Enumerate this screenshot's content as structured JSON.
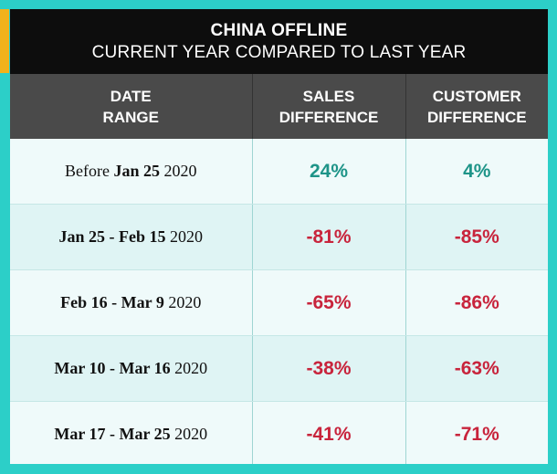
{
  "title": {
    "line1": "CHINA OFFLINE",
    "line2": "CURRENT YEAR COMPARED TO LAST YEAR"
  },
  "colors": {
    "background": "#2ccfc8",
    "accent": "#f2b21b",
    "positive": "#1e9488",
    "negative": "#c8243c"
  },
  "chart_data": {
    "type": "table",
    "columns": [
      [
        "DATE",
        "RANGE"
      ],
      [
        "SALES",
        "DIFFERENCE"
      ],
      [
        "CUSTOMER",
        "DIFFERENCE"
      ]
    ],
    "rows": [
      {
        "range_pre": "Before ",
        "range_bold": "Jan 25",
        "range_post": " 2020",
        "sales": "24%",
        "customer": "4%",
        "sales_value": 24,
        "customer_value": 4
      },
      {
        "range_pre": "",
        "range_bold": "Jan 25 - Feb 15",
        "range_post": " 2020",
        "sales": "-81%",
        "customer": "-85%",
        "sales_value": -81,
        "customer_value": -85
      },
      {
        "range_pre": "",
        "range_bold": "Feb 16 - Mar 9",
        "range_post": " 2020",
        "sales": "-65%",
        "customer": "-86%",
        "sales_value": -65,
        "customer_value": -86
      },
      {
        "range_pre": "",
        "range_bold": "Mar 10 - Mar 16",
        "range_post": " 2020",
        "sales": "-38%",
        "customer": "-63%",
        "sales_value": -38,
        "customer_value": -63
      },
      {
        "range_pre": "",
        "range_bold": "Mar 17 - Mar 25",
        "range_post": " 2020",
        "sales": "-41%",
        "customer": "-71%",
        "sales_value": -41,
        "customer_value": -71
      }
    ]
  }
}
